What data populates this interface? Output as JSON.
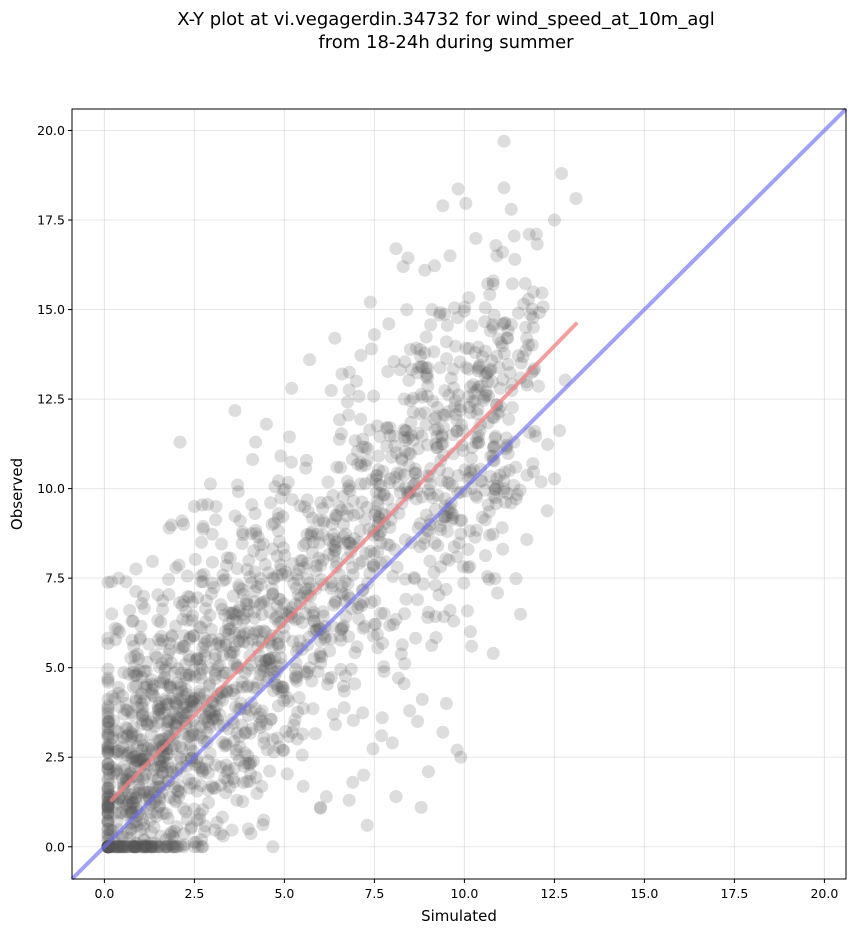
{
  "chart_data": {
    "type": "scatter",
    "title": [
      "X-Y plot at vi.vegagerdin.34732 for wind_speed_at_10m_agl",
      "from 18-24h during summer"
    ],
    "xlabel": "Simulated",
    "ylabel": "Observed",
    "xlim": [
      -0.9,
      20.6
    ],
    "ylim": [
      -0.9,
      20.6
    ],
    "x_ticks": [
      "0.0",
      "2.5",
      "5.0",
      "7.5",
      "10.0",
      "12.5",
      "15.0",
      "17.5",
      "20.0"
    ],
    "y_ticks": [
      "0.0",
      "2.5",
      "5.0",
      "7.5",
      "10.0",
      "12.5",
      "15.0",
      "17.5",
      "20.0"
    ],
    "grid": true,
    "marker_color": "#555555",
    "marker_alpha": 0.2,
    "n_points": 1900,
    "points_outlier": [
      [
        2.1,
        11.3
      ],
      [
        11.1,
        19.7
      ],
      [
        12.7,
        18.8
      ],
      [
        13.1,
        18.1
      ],
      [
        9.4,
        17.9
      ],
      [
        11.1,
        18.4
      ],
      [
        11.3,
        17.8
      ],
      [
        12.5,
        17.5
      ],
      [
        12.0,
        17.1
      ],
      [
        11.8,
        17.1
      ],
      [
        11.4,
        16.4
      ],
      [
        8.1,
        16.7
      ],
      [
        9.6,
        16.5
      ],
      [
        8.3,
        16.2
      ],
      [
        8.9,
        16.1
      ],
      [
        10.9,
        16.5
      ],
      [
        10.8,
        15.8
      ],
      [
        11.5,
        14.9
      ],
      [
        11.2,
        14.2
      ],
      [
        10.8,
        14.5
      ],
      [
        11.9,
        10.7
      ],
      [
        11.3,
        9.6
      ],
      [
        10.7,
        8.7
      ],
      [
        10.1,
        8.3
      ],
      [
        10.1,
        7.8
      ],
      [
        9.6,
        6.6
      ],
      [
        9.7,
        6.3
      ],
      [
        10.2,
        5.6
      ],
      [
        10.8,
        5.4
      ],
      [
        9.5,
        4.0
      ],
      [
        9.4,
        3.2
      ],
      [
        9.8,
        2.7
      ],
      [
        9.9,
        2.5
      ],
      [
        8.7,
        3.5
      ],
      [
        9.0,
        2.1
      ],
      [
        8.8,
        1.1
      ],
      [
        8.1,
        1.4
      ],
      [
        7.7,
        3.1
      ],
      [
        8.0,
        2.9
      ],
      [
        7.2,
        2.0
      ],
      [
        6.9,
        1.8
      ],
      [
        6.8,
        1.3
      ],
      [
        7.3,
        0.6
      ],
      [
        6.0,
        1.1
      ],
      [
        0.2,
        7.4
      ],
      [
        0.4,
        7.5
      ],
      [
        0.6,
        7.4
      ],
      [
        0.3,
        6.1
      ],
      [
        0.7,
        6.6
      ],
      [
        0.8,
        6.3
      ],
      [
        0.2,
        1.4
      ],
      [
        0.5,
        1.9
      ],
      [
        0.6,
        0.9
      ],
      [
        0.9,
        0.1
      ],
      [
        1.1,
        0.2
      ],
      [
        1.3,
        0.1
      ],
      [
        1.5,
        0.0
      ],
      [
        1.9,
        0.3
      ],
      [
        2.4,
        0.5
      ],
      [
        2.7,
        0.2
      ],
      [
        3.3,
        0.3
      ],
      [
        4.0,
        0.5
      ],
      [
        1.8,
        8.9
      ],
      [
        2.2,
        9.0
      ],
      [
        2.5,
        9.5
      ],
      [
        3.1,
        9.5
      ],
      [
        3.7,
        10.1
      ],
      [
        4.2,
        11.3
      ],
      [
        4.5,
        11.8
      ],
      [
        5.2,
        12.8
      ],
      [
        5.7,
        13.6
      ],
      [
        6.4,
        14.2
      ],
      [
        6.6,
        13.2
      ],
      [
        7.0,
        13.0
      ],
      [
        7.5,
        14.3
      ],
      [
        7.9,
        14.6
      ],
      [
        8.4,
        15.0
      ],
      [
        9.1,
        15.0
      ],
      [
        9.5,
        14.1
      ],
      [
        10.3,
        13.8
      ],
      [
        10.6,
        12.7
      ],
      [
        10.9,
        13.7
      ],
      [
        11.0,
        12.3
      ],
      [
        10.4,
        11.3
      ],
      [
        10.8,
        10.8
      ],
      [
        11.1,
        10.0
      ],
      [
        10.5,
        9.2
      ],
      [
        9.8,
        8.1
      ],
      [
        9.2,
        7.3
      ],
      [
        8.7,
        6.9
      ]
    ],
    "regression_line": {
      "x": [
        0.2,
        13.1
      ],
      "y": [
        1.3,
        14.6
      ],
      "color": "#f08080"
    },
    "identity_line": {
      "x": [
        -0.9,
        20.6
      ],
      "y": [
        -0.9,
        20.6
      ],
      "color": "#6f6ff0"
    }
  }
}
